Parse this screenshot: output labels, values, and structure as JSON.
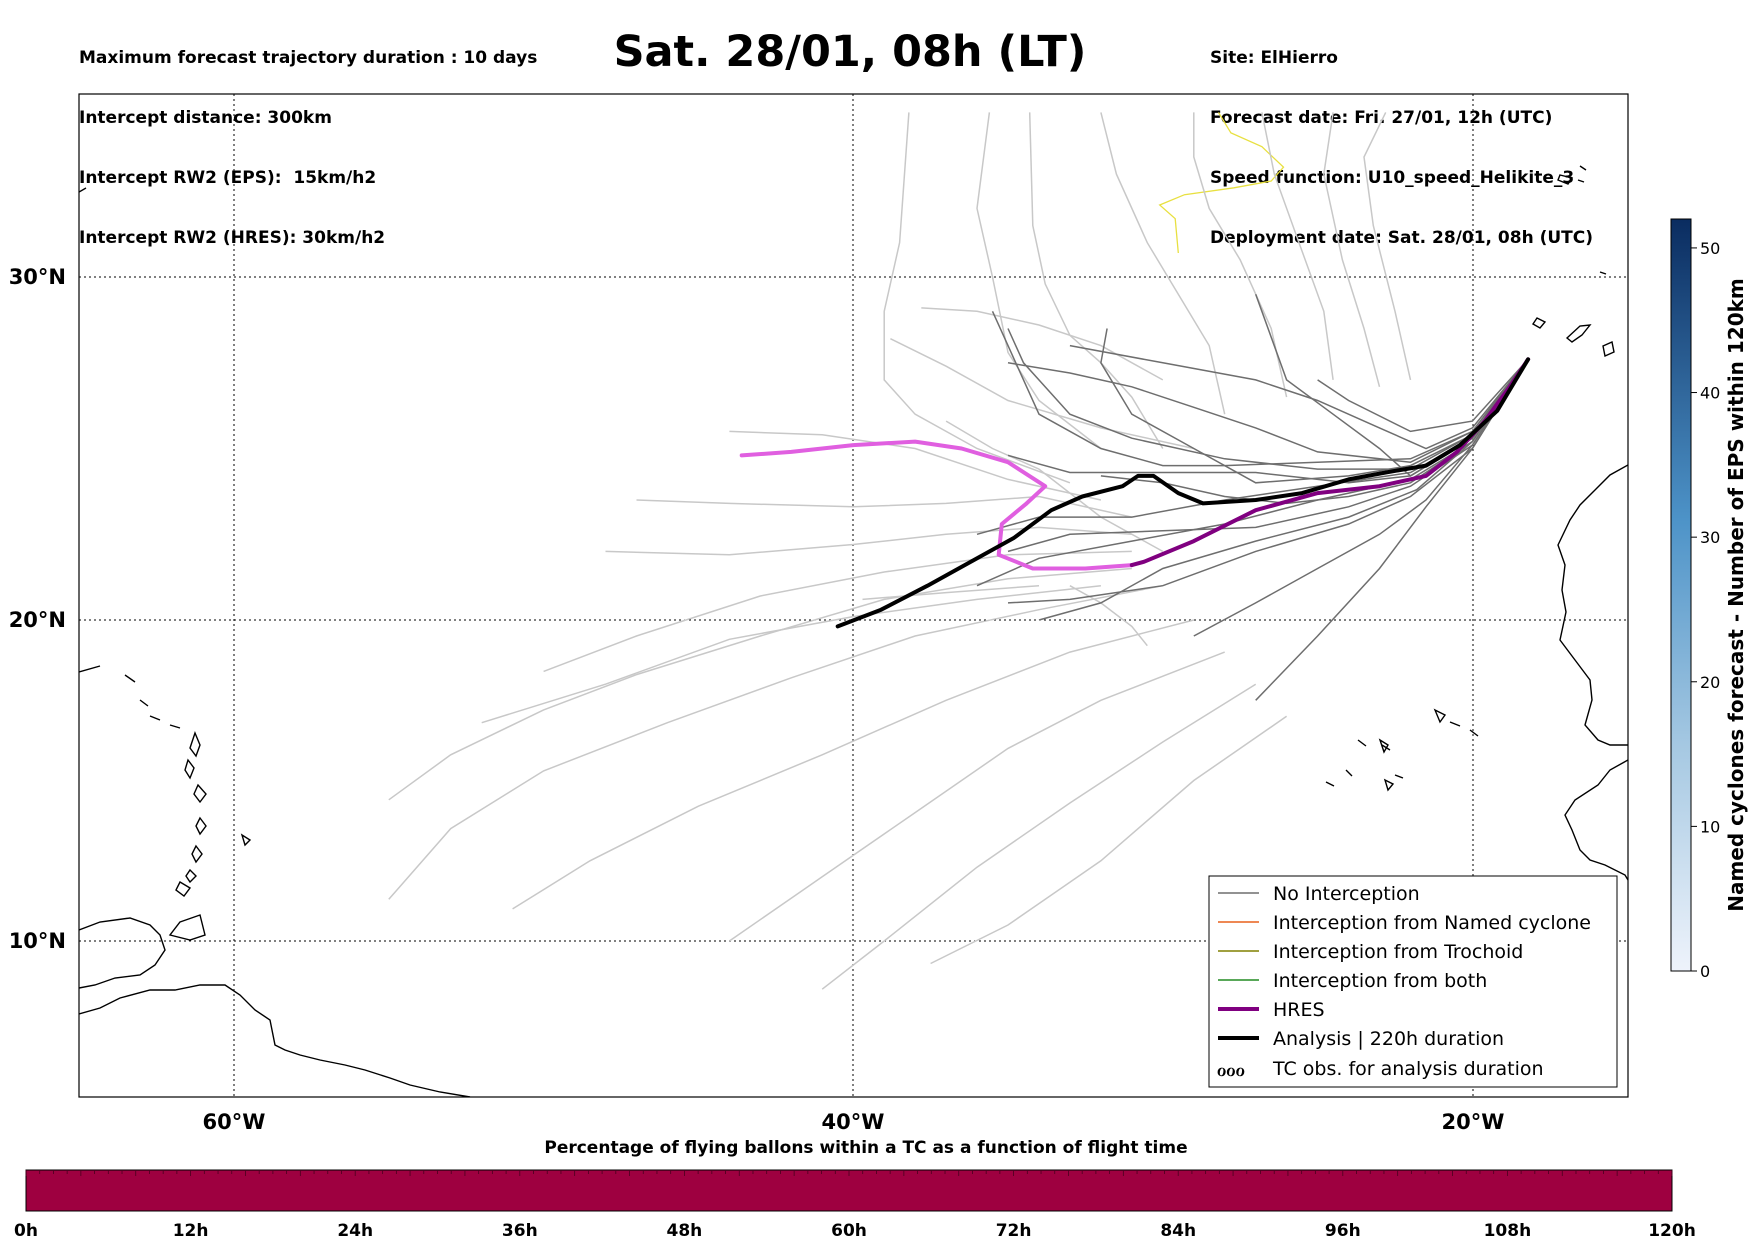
{
  "header": {
    "title": "Sat. 28/01, 08h (LT)",
    "left_lines": [
      "Maximum forecast trajectory duration : 10 days",
      "Intercept distance: 300km",
      "Intercept RW2 (EPS):  15km/h2",
      "Intercept RW2 (HRES): 30km/h2"
    ],
    "right_lines": [
      "Site: ElHierro",
      "Forecast date: Fri. 27/01, 12h (UTC)",
      "Speed function: U10_speed_Helikite_3",
      "Deployment date: Sat. 28/01, 08h (UTC)"
    ]
  },
  "map": {
    "lon_range": [
      -65,
      -15
    ],
    "lat_range": [
      5.5,
      34.8
    ],
    "lat_ticks": [
      {
        "value": 30,
        "label": "30°N"
      },
      {
        "value": 20,
        "label": "20°N"
      },
      {
        "value": 10,
        "label": "10°N"
      }
    ],
    "lon_ticks": [
      {
        "value": -60,
        "label": "60°W"
      },
      {
        "value": -40,
        "label": "40°W"
      },
      {
        "value": -20,
        "label": "20°W"
      }
    ],
    "launch_site": {
      "lon": -18.2,
      "lat": 27.6
    },
    "colors": {
      "no_interception": "#6e6e6e",
      "eps_light": "#c8c8c8",
      "named_cyclone": "#e8601c",
      "trochoid": "#808000",
      "both": "#228b22",
      "hres": "#800080",
      "hres_early": "#e05fe0",
      "analysis": "#000000",
      "contour": "#e8e040"
    }
  },
  "legend": {
    "items": [
      {
        "label": "No Interception",
        "color": "#6e6e6e",
        "width": 1.5
      },
      {
        "label": "Interception from Named cyclone",
        "color": "#e8601c",
        "width": 1.5
      },
      {
        "label": "Interception from Trochoid",
        "color": "#808000",
        "width": 1.5
      },
      {
        "label": "Interception from both",
        "color": "#228b22",
        "width": 1.5
      },
      {
        "label": "HRES",
        "color": "#800080",
        "width": 4
      },
      {
        "label": "Analysis | 220h duration",
        "color": "#000000",
        "width": 4
      }
    ],
    "tc_label": "TC obs. for analysis duration",
    "tc_symbol": "ℴℴℴ"
  },
  "colorbar": {
    "label": "Named cyclones forecast - Number of EPS within 120km",
    "min": 0,
    "max": 52,
    "ticks": [
      0,
      10,
      20,
      30,
      40,
      50
    ]
  },
  "bottom": {
    "title": "Percentage of flying ballons within a TC as a function of flight time",
    "ticks": [
      "0h",
      "12h",
      "24h",
      "36h",
      "48h",
      "60h",
      "72h",
      "84h",
      "96h",
      "108h",
      "120h"
    ],
    "fill_color": "#9e0040"
  },
  "trajectories": {
    "hres": [
      [
        -18.2,
        27.6
      ],
      [
        -18.8,
        26.8
      ],
      [
        -19.6,
        25.8
      ],
      [
        -20.5,
        24.9
      ],
      [
        -21.5,
        24.2
      ],
      [
        -23,
        23.9
      ],
      [
        -25,
        23.7
      ],
      [
        -27,
        23.2
      ],
      [
        -29,
        22.3
      ],
      [
        -30.6,
        21.7
      ],
      [
        -31,
        21.6
      ]
    ],
    "hres_early": [
      [
        -31,
        21.6
      ],
      [
        -32.5,
        21.5
      ],
      [
        -34.2,
        21.5
      ],
      [
        -35.3,
        21.9
      ],
      [
        -35.2,
        22.8
      ],
      [
        -34.4,
        23.4
      ],
      [
        -33.8,
        23.9
      ],
      [
        -35,
        24.6
      ],
      [
        -36.5,
        25.0
      ],
      [
        -38,
        25.2
      ],
      [
        -40,
        25.1
      ],
      [
        -42,
        24.9
      ],
      [
        -43.6,
        24.8
      ]
    ],
    "analysis": [
      [
        -18.2,
        27.6
      ],
      [
        -19.2,
        26.1
      ],
      [
        -20.4,
        25.1
      ],
      [
        -21.5,
        24.5
      ],
      [
        -22.8,
        24.3
      ],
      [
        -24,
        24.1
      ],
      [
        -25.5,
        23.7
      ],
      [
        -27,
        23.5
      ],
      [
        -28.7,
        23.4
      ],
      [
        -29.5,
        23.7
      ],
      [
        -30.3,
        24.2
      ],
      [
        -30.8,
        24.2
      ],
      [
        -31.3,
        23.9
      ],
      [
        -32.6,
        23.6
      ],
      [
        -33.6,
        23.2
      ],
      [
        -34.8,
        22.4
      ],
      [
        -36.2,
        21.7
      ],
      [
        -37.6,
        21.0
      ],
      [
        -39.1,
        20.3
      ],
      [
        -40.5,
        19.8
      ]
    ],
    "eps_dark": [
      [
        [
          -18.2,
          27.6
        ],
        [
          -20,
          25.5
        ],
        [
          -22,
          24.7
        ],
        [
          -25,
          24.6
        ],
        [
          -28,
          24.5
        ],
        [
          -30,
          24.5
        ],
        [
          -32,
          25
        ],
        [
          -34,
          26
        ],
        [
          -35,
          28
        ],
        [
          -35.5,
          29
        ]
      ],
      [
        [
          -18.2,
          27.6
        ],
        [
          -20,
          25.4
        ],
        [
          -22,
          24.5
        ],
        [
          -24,
          24.2
        ],
        [
          -27,
          24
        ],
        [
          -29,
          25
        ],
        [
          -31,
          26
        ],
        [
          -32,
          27.5
        ],
        [
          -31.8,
          28.5
        ]
      ],
      [
        [
          -18.2,
          27.6
        ],
        [
          -20,
          25.3
        ],
        [
          -22,
          24.3
        ],
        [
          -25,
          23.9
        ],
        [
          -28,
          23.5
        ],
        [
          -31,
          23
        ],
        [
          -34,
          23
        ],
        [
          -36,
          22.5
        ]
      ],
      [
        [
          -18.2,
          27.6
        ],
        [
          -20,
          25.2
        ],
        [
          -22,
          24.1
        ],
        [
          -25,
          23.5
        ],
        [
          -28,
          22.8
        ],
        [
          -31,
          22.3
        ],
        [
          -34,
          21.8
        ],
        [
          -36,
          21
        ]
      ],
      [
        [
          -18.2,
          27.6
        ],
        [
          -20,
          25.2
        ],
        [
          -21.8,
          23.8
        ],
        [
          -24,
          23
        ],
        [
          -27,
          22.3
        ],
        [
          -30,
          21.5
        ],
        [
          -32,
          20.5
        ],
        [
          -34,
          20
        ]
      ],
      [
        [
          -18.2,
          27.6
        ],
        [
          -20,
          25.1
        ],
        [
          -21.5,
          23.5
        ],
        [
          -23,
          22.5
        ],
        [
          -25,
          21.5
        ],
        [
          -27,
          20.5
        ],
        [
          -29,
          19.5
        ]
      ],
      [
        [
          -18.2,
          27.6
        ],
        [
          -20,
          25
        ],
        [
          -21.5,
          23.3
        ],
        [
          -23,
          21.5
        ],
        [
          -25,
          19.5
        ],
        [
          -27,
          17.5
        ]
      ],
      [
        [
          -18.2,
          27.6
        ],
        [
          -20,
          25.6
        ],
        [
          -21.5,
          25
        ],
        [
          -23,
          25.6
        ],
        [
          -25,
          26.4
        ],
        [
          -27,
          27
        ],
        [
          -30,
          27.5
        ],
        [
          -33,
          28
        ]
      ],
      [
        [
          -18.2,
          27.6
        ],
        [
          -20,
          25.8
        ],
        [
          -22,
          25.5
        ],
        [
          -24,
          26.4
        ],
        [
          -25,
          27
        ]
      ],
      [
        [
          -18.2,
          27.6
        ],
        [
          -20,
          25.5
        ],
        [
          -22,
          24.6
        ],
        [
          -25,
          24.9
        ],
        [
          -27,
          25.6
        ],
        [
          -29,
          26.2
        ],
        [
          -31,
          26.8
        ],
        [
          -33,
          27.2
        ],
        [
          -35,
          27.5
        ]
      ],
      [
        [
          -18.2,
          27.6
        ],
        [
          -20,
          25.4
        ],
        [
          -22,
          24.4
        ],
        [
          -25,
          24.4
        ],
        [
          -28,
          24.7
        ],
        [
          -31,
          25.3
        ],
        [
          -33,
          26
        ],
        [
          -34.5,
          27.5
        ],
        [
          -35,
          28.5
        ]
      ],
      [
        [
          -18.2,
          27.6
        ],
        [
          -20,
          25.3
        ],
        [
          -22,
          24.2
        ],
        [
          -24,
          24
        ],
        [
          -27,
          24.3
        ],
        [
          -30,
          24.3
        ],
        [
          -33,
          24.3
        ],
        [
          -35,
          24.8
        ]
      ],
      [
        [
          -18.2,
          27.6
        ],
        [
          -20,
          25.1
        ],
        [
          -22,
          23.9
        ],
        [
          -24,
          23.3
        ],
        [
          -27,
          22.7
        ],
        [
          -30,
          22.6
        ],
        [
          -33,
          22.5
        ],
        [
          -35,
          22
        ]
      ],
      [
        [
          -18.2,
          27.6
        ],
        [
          -20,
          25.2
        ],
        [
          -22,
          24
        ],
        [
          -24,
          23.6
        ],
        [
          -26,
          23.4
        ],
        [
          -28,
          23.6
        ],
        [
          -30,
          24
        ],
        [
          -32,
          24.2
        ]
      ],
      [
        [
          -18.2,
          27.6
        ],
        [
          -20,
          25.0
        ],
        [
          -22,
          23.6
        ],
        [
          -24,
          22.8
        ],
        [
          -27,
          22
        ],
        [
          -30,
          21
        ],
        [
          -33,
          20.6
        ],
        [
          -35,
          20.5
        ]
      ],
      [
        [
          -18.2,
          27.6
        ],
        [
          -20,
          25.3
        ],
        [
          -22,
          24.2
        ],
        [
          -23,
          25
        ],
        [
          -24.5,
          26
        ],
        [
          -26,
          27
        ],
        [
          -27,
          29.5
        ]
      ]
    ],
    "eps_light": [
      [
        [
          -31,
          21.5
        ],
        [
          -35,
          21.2
        ],
        [
          -39,
          20.6
        ],
        [
          -43,
          19.5
        ],
        [
          -47,
          18.3
        ],
        [
          -50,
          17.2
        ],
        [
          -53,
          15.8
        ],
        [
          -55,
          14.4
        ]
      ],
      [
        [
          -30,
          21
        ],
        [
          -34,
          20.3
        ],
        [
          -38,
          19.5
        ],
        [
          -42,
          18.2
        ],
        [
          -46,
          16.8
        ],
        [
          -50,
          15.3
        ],
        [
          -53,
          13.5
        ],
        [
          -55,
          11.3
        ]
      ],
      [
        [
          -29,
          20
        ],
        [
          -33,
          19
        ],
        [
          -37,
          17.5
        ],
        [
          -41,
          15.8
        ],
        [
          -45,
          14.2
        ],
        [
          -48.5,
          12.5
        ],
        [
          -51,
          11
        ]
      ],
      [
        [
          -28,
          19
        ],
        [
          -32,
          17.5
        ],
        [
          -35,
          16
        ],
        [
          -38,
          14
        ],
        [
          -41,
          12
        ],
        [
          -44,
          10
        ]
      ],
      [
        [
          -27,
          18
        ],
        [
          -30,
          16.2
        ],
        [
          -33,
          14.3
        ],
        [
          -36,
          12.3
        ],
        [
          -39,
          10
        ],
        [
          -41,
          8.5
        ]
      ],
      [
        [
          -26,
          17
        ],
        [
          -29,
          15
        ],
        [
          -32,
          12.5
        ],
        [
          -35,
          10.5
        ],
        [
          -37.5,
          9.3
        ]
      ],
      [
        [
          -32,
          21
        ],
        [
          -36,
          20.6
        ],
        [
          -40,
          20.1
        ],
        [
          -44,
          19.4
        ],
        [
          -48,
          18
        ],
        [
          -52,
          16.8
        ]
      ],
      [
        [
          -31,
          22
        ],
        [
          -35,
          21.9
        ],
        [
          -39,
          21.4
        ],
        [
          -43,
          20.7
        ],
        [
          -47,
          19.5
        ],
        [
          -50,
          18.4
        ]
      ],
      [
        [
          -31,
          22.5
        ],
        [
          -34,
          22.7
        ],
        [
          -37,
          22.5
        ],
        [
          -40,
          22.2
        ],
        [
          -44,
          21.9
        ],
        [
          -48,
          22
        ]
      ],
      [
        [
          -31,
          23
        ],
        [
          -34,
          23.6
        ],
        [
          -37,
          23.4
        ],
        [
          -40,
          23.3
        ],
        [
          -44,
          23.4
        ],
        [
          -47,
          23.5
        ]
      ],
      [
        [
          -32,
          23.5
        ],
        [
          -35,
          24.1
        ],
        [
          -38,
          25
        ],
        [
          -41,
          25.4
        ],
        [
          -44,
          25.5
        ]
      ],
      [
        [
          -33,
          24
        ],
        [
          -36,
          25
        ],
        [
          -38,
          26
        ],
        [
          -39,
          27
        ],
        [
          -39,
          29
        ],
        [
          -38.5,
          31
        ],
        [
          -38.2,
          34.8
        ]
      ],
      [
        [
          -32,
          25
        ],
        [
          -34,
          26.4
        ],
        [
          -35,
          27.8
        ],
        [
          -35.5,
          30
        ],
        [
          -36,
          32
        ],
        [
          -35.6,
          34.8
        ]
      ],
      [
        [
          -30,
          25
        ],
        [
          -31,
          26.5
        ],
        [
          -32,
          27.5
        ],
        [
          -33,
          28.3
        ],
        [
          -33.8,
          29.8
        ],
        [
          -34.2,
          31.5
        ],
        [
          -34.3,
          34.8
        ]
      ],
      [
        [
          -28,
          26
        ],
        [
          -28.5,
          28
        ],
        [
          -29.5,
          29.5
        ],
        [
          -30.5,
          31
        ],
        [
          -31.5,
          33
        ],
        [
          -32,
          34.8
        ]
      ],
      [
        [
          -26,
          26.5
        ],
        [
          -26.5,
          28.5
        ],
        [
          -27.5,
          30.5
        ],
        [
          -28.5,
          32
        ],
        [
          -29,
          33.5
        ],
        [
          -29,
          34.8
        ]
      ],
      [
        [
          -24.5,
          27
        ],
        [
          -24.8,
          29
        ],
        [
          -25.6,
          31
        ],
        [
          -26.4,
          33
        ],
        [
          -26.8,
          34.8
        ]
      ],
      [
        [
          -23,
          26.8
        ],
        [
          -23.5,
          28.5
        ],
        [
          -24.2,
          30.5
        ],
        [
          -24.8,
          33
        ],
        [
          -24.5,
          34.8
        ]
      ],
      [
        [
          -22,
          27
        ],
        [
          -22.5,
          29
        ],
        [
          -23.2,
          31.5
        ],
        [
          -23.5,
          33.5
        ],
        [
          -22.8,
          34.8
        ]
      ],
      [
        [
          -30,
          27
        ],
        [
          -32,
          28
        ],
        [
          -34,
          28.6
        ],
        [
          -36,
          29
        ],
        [
          -37.8,
          29.1
        ]
      ],
      [
        [
          -34,
          21
        ],
        [
          -37,
          20.8
        ],
        [
          -39.7,
          20.6
        ]
      ],
      [
        [
          -29,
          25
        ],
        [
          -32,
          25.6
        ],
        [
          -35,
          26.4
        ],
        [
          -37,
          27.4
        ],
        [
          -38.8,
          28.2
        ]
      ],
      [
        [
          -30,
          22
        ],
        [
          -32,
          23
        ],
        [
          -34,
          24.4
        ],
        [
          -35.5,
          25
        ],
        [
          -37,
          25.8
        ]
      ],
      [
        [
          -33,
          21
        ],
        [
          -32,
          20.5
        ],
        [
          -31,
          19.8
        ],
        [
          -30.5,
          19.2
        ]
      ]
    ],
    "contour": [
      [
        -28.2,
        34.8
      ],
      [
        -27.8,
        34.2
      ],
      [
        -26.8,
        33.8
      ],
      [
        -26.1,
        33.2
      ],
      [
        -26.5,
        32.8
      ],
      [
        -27.7,
        32.6
      ],
      [
        -29.3,
        32.4
      ],
      [
        -30.1,
        32.1
      ],
      [
        -29.6,
        31.7
      ],
      [
        -29.5,
        30.7
      ]
    ]
  }
}
